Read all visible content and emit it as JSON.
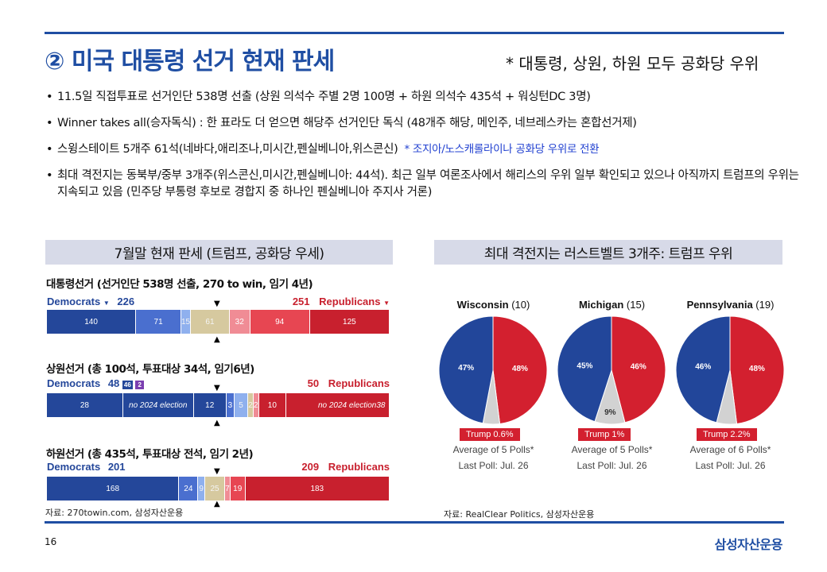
{
  "header": {
    "title": "② 미국 대통령 선거 현재 판세",
    "note": "* 대통령, 상원, 하원 모두 공화당 우위"
  },
  "bullets": [
    "11.5일 직접투표로 선거인단 538명 선출 (상원 의석수 주별 2명 100명 + 하원 의석수 435석 + 워싱턴DC 3명)",
    "Winner takes all(승자독식) : 한 표라도 더 얻으면 해당주 선거인단 독식 (48개주 해당, 메인주, 네브레스카는 혼합선거제)",
    "스윙스테이트 5개주 61석(네바다,애리조나,미시간,펜실베니아,위스콘신)",
    "최대 격전지는 동북부/중부 3개주(위스콘신,미시간,펜실베니아:  44석). 최근 일부 여론조사에서 해리스의 우위 일부 확인되고 있으나 아직까지 트럼프의 우위는 지속되고 있음 (민주당 부통령 후보로 경합지 중 하나인 펜실베니아 주지사 거론)"
  ],
  "bullet3_note": "* 조지아/노스캐롤라이나 공화당 우위로 전환",
  "left_panel": {
    "header": "7월말 현재 판세 (트럼프, 공화당 우세)",
    "source": "자료: 270towin.com, 삼성자산운용"
  },
  "right_panel": {
    "header": "최대 격전지는 러스트벨트 3개주: 트럼프 우위",
    "source": "자료: RealClear Politics, 삼성자산운용"
  },
  "chart_data": [
    {
      "type": "bar",
      "title": "대통령선거 (선거인단 538명 선출, 270 to win, 임기 4년)",
      "dem_label": "Democrats",
      "dem_total": "226",
      "rep_label": "Republicans",
      "rep_total": "251",
      "segments": [
        {
          "value": 140,
          "color": "#24479a",
          "label": "140"
        },
        {
          "value": 71,
          "color": "#4a6fcf",
          "label": "71"
        },
        {
          "value": 15,
          "color": "#8fb0ee",
          "label": "15"
        },
        {
          "value": 61,
          "color": "#d6c99f",
          "label": "61"
        },
        {
          "value": 32,
          "color": "#f08c95",
          "label": "32"
        },
        {
          "value": 94,
          "color": "#e74652",
          "label": "94"
        },
        {
          "value": 125,
          "color": "#c8202e",
          "label": "125"
        }
      ]
    },
    {
      "type": "bar",
      "title": "상원선거 (총 100석, 투표대상 34석, 임기6년)",
      "dem_label": "Democrats",
      "dem_total": "48",
      "dem_badges": [
        "46",
        "2"
      ],
      "rep_label": "Republicans",
      "rep_total": "50",
      "segments": [
        {
          "value": 28,
          "color": "#24479a",
          "label": "28"
        },
        {
          "value": 26,
          "color": "#24479a",
          "label": "no 2024 election"
        },
        {
          "value": 12,
          "color": "#24479a",
          "label": "12"
        },
        {
          "value": 3,
          "color": "#4a6fcf",
          "label": "3"
        },
        {
          "value": 5,
          "color": "#8fb0ee",
          "label": "5"
        },
        {
          "value": 2,
          "color": "#d6c99f",
          "label": "2"
        },
        {
          "value": 2,
          "color": "#f08c95",
          "label": "2"
        },
        {
          "value": 10,
          "color": "#c8202e",
          "label": "10"
        },
        {
          "value": 38,
          "color": "#c8202e",
          "label": "no 2024 election"
        },
        {
          "value": 0,
          "color": "#c8202e",
          "label": "38"
        }
      ]
    },
    {
      "type": "bar",
      "title": "하원선거 (총 435석, 투표대상 전석, 임기 2년)",
      "dem_label": "Democrats",
      "dem_total": "201",
      "rep_label": "Republicans",
      "rep_total": "209",
      "segments": [
        {
          "value": 168,
          "color": "#24479a",
          "label": "168"
        },
        {
          "value": 24,
          "color": "#4a6fcf",
          "label": "24"
        },
        {
          "value": 9,
          "color": "#8fb0ee",
          "label": "9"
        },
        {
          "value": 25,
          "color": "#d6c99f",
          "label": "25"
        },
        {
          "value": 7,
          "color": "#f08c95",
          "label": "7"
        },
        {
          "value": 19,
          "color": "#e74652",
          "label": "19"
        },
        {
          "value": 183,
          "color": "#c8202e",
          "label": "183"
        }
      ]
    },
    {
      "type": "pie",
      "title": "Wisconsin",
      "electoral": "(10)",
      "slices": [
        {
          "name": "Trump",
          "value": 48,
          "label": "48%",
          "color": "#d3202f"
        },
        {
          "name": "Other",
          "value": 5,
          "label": "",
          "color": "#d2d2d2"
        },
        {
          "name": "Harris",
          "value": 47,
          "label": "47%",
          "color": "#22469a"
        }
      ],
      "lead": "Trump 0.6%",
      "avg": "Average of 5 Polls*",
      "last_poll": "Last Poll: Jul. 26"
    },
    {
      "type": "pie",
      "title": "Michigan",
      "electoral": "(15)",
      "slices": [
        {
          "name": "Trump",
          "value": 46,
          "label": "46%",
          "color": "#d3202f"
        },
        {
          "name": "Other",
          "value": 9,
          "label": "9%",
          "color": "#d2d2d2"
        },
        {
          "name": "Harris",
          "value": 45,
          "label": "45%",
          "color": "#22469a"
        }
      ],
      "lead": "Trump 1%",
      "avg": "Average of 5 Polls*",
      "last_poll": "Last Poll: Jul. 26"
    },
    {
      "type": "pie",
      "title": "Pennsylvania",
      "electoral": "(19)",
      "slices": [
        {
          "name": "Trump",
          "value": 48,
          "label": "48%",
          "color": "#d3202f"
        },
        {
          "name": "Other",
          "value": 6,
          "label": "",
          "color": "#d2d2d2"
        },
        {
          "name": "Harris",
          "value": 46,
          "label": "46%",
          "color": "#22469a"
        }
      ],
      "lead": "Trump 2.2%",
      "avg": "Average of 6 Polls*",
      "last_poll": "Last Poll: Jul. 26"
    }
  ],
  "footer": {
    "page": "16",
    "logo": "삼성자산운용"
  }
}
